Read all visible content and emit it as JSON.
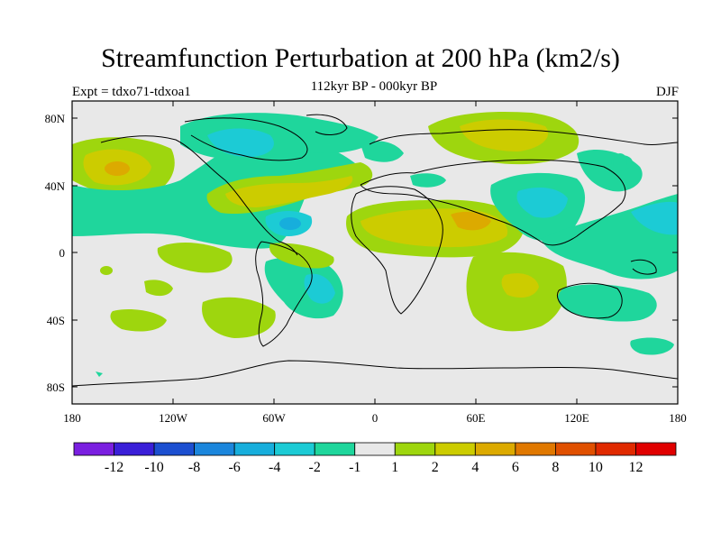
{
  "title": "Streamfunction Perturbation at 200 hPa (km2/s)",
  "left_label": "Expt = tdxo71-tdxoa1",
  "center_label": "112kyr BP - 000kyr BP",
  "right_label": "DJF",
  "lat_ticks": [
    "80N",
    "40N",
    "0",
    "40S",
    "80S"
  ],
  "lon_ticks": [
    "180",
    "120W",
    "60W",
    "0",
    "60E",
    "120E",
    "180"
  ],
  "colorbar": {
    "labels": [
      "-12",
      "-10",
      "-8",
      "-6",
      "-4",
      "-2",
      "-1",
      "1",
      "2",
      "4",
      "6",
      "8",
      "10",
      "12"
    ],
    "colors": [
      "#7a1fe0",
      "#3a1fd8",
      "#1c4fd0",
      "#1b86dc",
      "#17aedc",
      "#1ccbd5",
      "#1fd69c",
      "#e8e8e8",
      "#9ed60e",
      "#cccc00",
      "#dcaa00",
      "#e07800",
      "#e05000",
      "#e02a00",
      "#e00000"
    ]
  },
  "map": {
    "background_color": "#e8e8e8",
    "contour_colors": {
      "neg1": "#1fd69c",
      "neg2": "#1ccbd5",
      "neg4": "#17aedc",
      "pos1": "#9ed60e",
      "pos2": "#cccc00",
      "pos4": "#dcaa00"
    }
  }
}
